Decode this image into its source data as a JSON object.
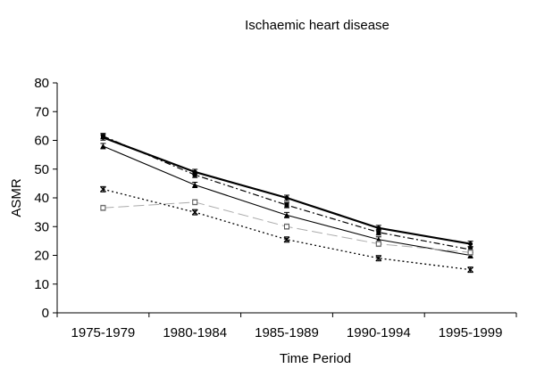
{
  "chart_data": {
    "type": "line",
    "title": "Ischaemic heart disease",
    "xlabel": "Time Period",
    "ylabel": "ASMR",
    "ylim": [
      0,
      80
    ],
    "yticks": [
      0,
      10,
      20,
      30,
      40,
      50,
      60,
      70,
      80
    ],
    "categories": [
      "1975-1979",
      "1980-1984",
      "1985-1989",
      "1990-1994",
      "1995-1999"
    ],
    "grid": false,
    "legend": "none",
    "series": [
      {
        "values": [
          61,
          49,
          40,
          29.5,
          24
        ],
        "style": "solid-thick",
        "marker": "circle",
        "color": "#000000"
      },
      {
        "values": [
          61.5,
          48,
          37.5,
          28,
          22
        ],
        "style": "dash-dot",
        "marker": "square",
        "color": "#000000"
      },
      {
        "values": [
          58,
          44.5,
          34,
          25.5,
          20
        ],
        "style": "solid-thin",
        "marker": "triangle",
        "color": "#000000"
      },
      {
        "values": [
          36.5,
          38.5,
          30,
          24,
          21
        ],
        "style": "long-dash",
        "marker": "open-square",
        "color": "#aaaaaa"
      },
      {
        "values": [
          43,
          35,
          25.5,
          19,
          15
        ],
        "style": "dotted",
        "marker": "x",
        "color": "#000000"
      }
    ]
  }
}
